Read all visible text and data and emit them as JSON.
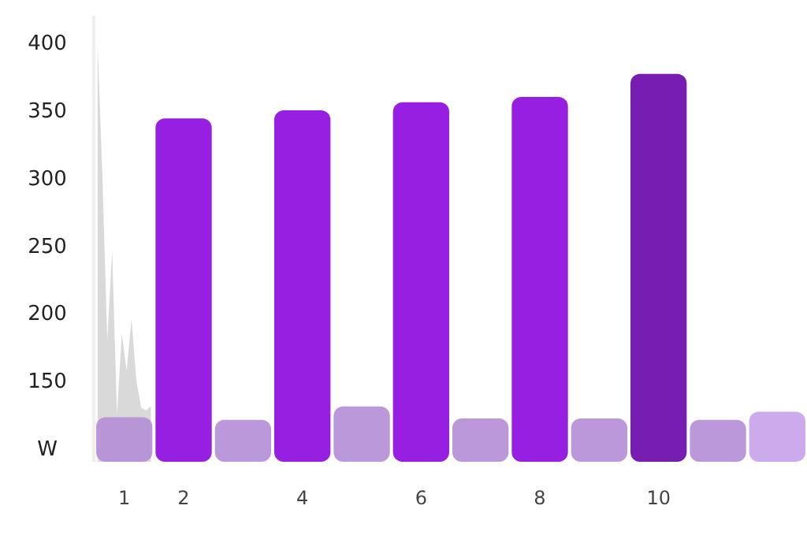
{
  "chart_data": [
    {
      "type": "area",
      "color": "#d9d9d9",
      "categories": [
        null,
        null,
        null,
        null,
        null,
        null,
        null,
        null,
        null,
        null,
        null,
        null
      ],
      "ylim": [
        90,
        420
      ],
      "yticks": [
        {
          "value": 100,
          "label": "W"
        },
        150,
        200,
        250,
        300,
        350,
        400
      ],
      "tick_labels": "y",
      "values": [
        400,
        300,
        180,
        246,
        125,
        185,
        157,
        196,
        150,
        130,
        128,
        131
      ]
    },
    {
      "type": "bar",
      "categories": [
        "1",
        "2",
        null,
        "4",
        null,
        "6",
        null,
        "8",
        null,
        "10",
        null,
        null
      ],
      "ylim": [
        90,
        420
      ],
      "tick_labels": "x",
      "colors": [
        "#b58fd6",
        "#8e0ce0",
        "#b58fd6",
        "#8e0ce0",
        "#b58fd6",
        "#8e0ce0",
        "#b58fd6",
        "#8e0ce0",
        "#b58fd6",
        "#6c0aab",
        "#b58fd6",
        "#c9a3ea"
      ],
      "values": [
        123,
        344,
        121,
        350,
        131,
        356,
        122,
        360,
        122,
        377,
        121,
        127
      ]
    }
  ]
}
